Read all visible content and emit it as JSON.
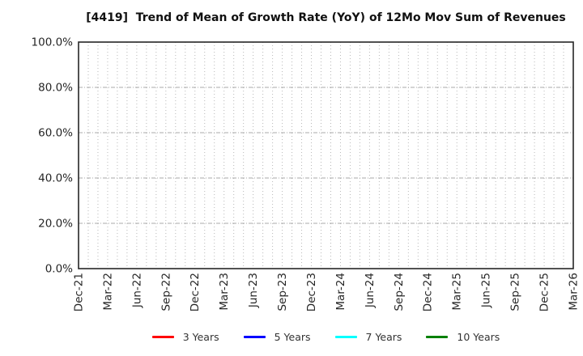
{
  "title": "[4419]  Trend of Mean of Growth Rate (YoY) of 12Mo Mov Sum of Revenues",
  "y_axis": {
    "tick_labels": [
      "100.0%",
      "80.0%",
      "60.0%",
      "40.0%",
      "20.0%",
      "0.0%"
    ],
    "tick_values": [
      100,
      80,
      60,
      40,
      20,
      0
    ]
  },
  "x_axis": {
    "tick_labels": [
      "Dec-21",
      "Mar-22",
      "Jun-22",
      "Sep-22",
      "Dec-22",
      "Mar-23",
      "Jun-23",
      "Sep-23",
      "Dec-23",
      "Mar-24",
      "Jun-24",
      "Sep-24",
      "Dec-24",
      "Mar-25",
      "Jun-25",
      "Sep-25",
      "Dec-25",
      "Mar-26"
    ],
    "months_between_ticks": 3,
    "total_month_intervals": 51
  },
  "legend": {
    "items": [
      {
        "label": "3 Years",
        "color": "#ff0000"
      },
      {
        "label": "5 Years",
        "color": "#0000ff"
      },
      {
        "label": "7 Years",
        "color": "#00ffff"
      },
      {
        "label": "10 Years",
        "color": "#008000"
      }
    ]
  },
  "chart_data": {
    "type": "line",
    "title": "[4419]  Trend of Mean of Growth Rate (YoY) of 12Mo Mov Sum of Revenues",
    "x": [
      "Dec-21",
      "Mar-22",
      "Jun-22",
      "Sep-22",
      "Dec-22",
      "Mar-23",
      "Jun-23",
      "Sep-23",
      "Dec-23",
      "Mar-24",
      "Jun-24",
      "Sep-24",
      "Dec-24",
      "Mar-25",
      "Jun-25",
      "Sep-25",
      "Dec-25",
      "Mar-26"
    ],
    "series": [
      {
        "name": "3 Years",
        "color": "#ff0000",
        "values": []
      },
      {
        "name": "5 Years",
        "color": "#0000ff",
        "values": []
      },
      {
        "name": "7 Years",
        "color": "#00ffff",
        "values": []
      },
      {
        "name": "10 Years",
        "color": "#008000",
        "values": []
      }
    ],
    "xlabel": "",
    "ylabel": "",
    "ylim": [
      0,
      100
    ],
    "y_tick_step_percent": 20,
    "grid": "on",
    "legend_position": "bottom"
  },
  "colors": {
    "background": "#ffffff",
    "spine": "#262626",
    "grid": "#b0b0b0",
    "title_text": "#111111",
    "tick_text": "#262626",
    "legend_text": "#333333"
  }
}
